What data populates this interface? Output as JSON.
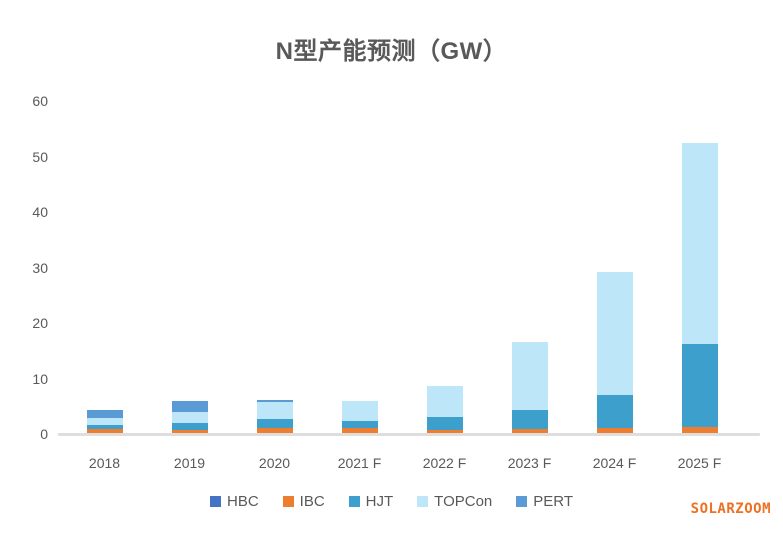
{
  "title": "N型产能预测（GW）",
  "watermark": "SOLARZOOM",
  "colors": {
    "hbc": "#4472C4",
    "ibc": "#ED7D31",
    "hjt": "#3D9FCB",
    "topcon": "#BDE6F9",
    "pert": "#5B9BD5",
    "axis_line": "#DEDEDE",
    "text": "#595959",
    "watermark": "#EE7023"
  },
  "chart_data": {
    "type": "bar",
    "stacked": true,
    "title": "N型产能预测（GW）",
    "categories": [
      "2018",
      "2019",
      "2020",
      "2021 F",
      "2022 F",
      "2023 F",
      "2024 F",
      "2025 F"
    ],
    "series": [
      {
        "name": "HBC",
        "color": "#4472C4",
        "values": [
          0,
          0,
          0,
          0,
          0,
          0,
          0,
          0
        ]
      },
      {
        "name": "IBC",
        "color": "#ED7D31",
        "values": [
          0.9,
          0.8,
          1.0,
          1.0,
          0.7,
          0.9,
          1.0,
          1.2
        ]
      },
      {
        "name": "HJT",
        "color": "#3D9FCB",
        "values": [
          0.8,
          1.2,
          1.7,
          1.4,
          2.3,
          3.4,
          6.0,
          15.0
        ]
      },
      {
        "name": "TOPCon",
        "color": "#BDE6F9",
        "values": [
          1.1,
          2.0,
          3.0,
          3.5,
          5.7,
          12.3,
          22.2,
          36.2
        ]
      },
      {
        "name": "PERT",
        "color": "#5B9BD5",
        "values": [
          1.5,
          1.9,
          0.5,
          0,
          0,
          0,
          0,
          0
        ]
      }
    ],
    "y_ticks": [
      0,
      10,
      20,
      30,
      40,
      50,
      60
    ],
    "ylim": [
      0,
      60
    ],
    "ylabel": "",
    "xlabel": "",
    "grid": false,
    "legend_position": "bottom"
  }
}
